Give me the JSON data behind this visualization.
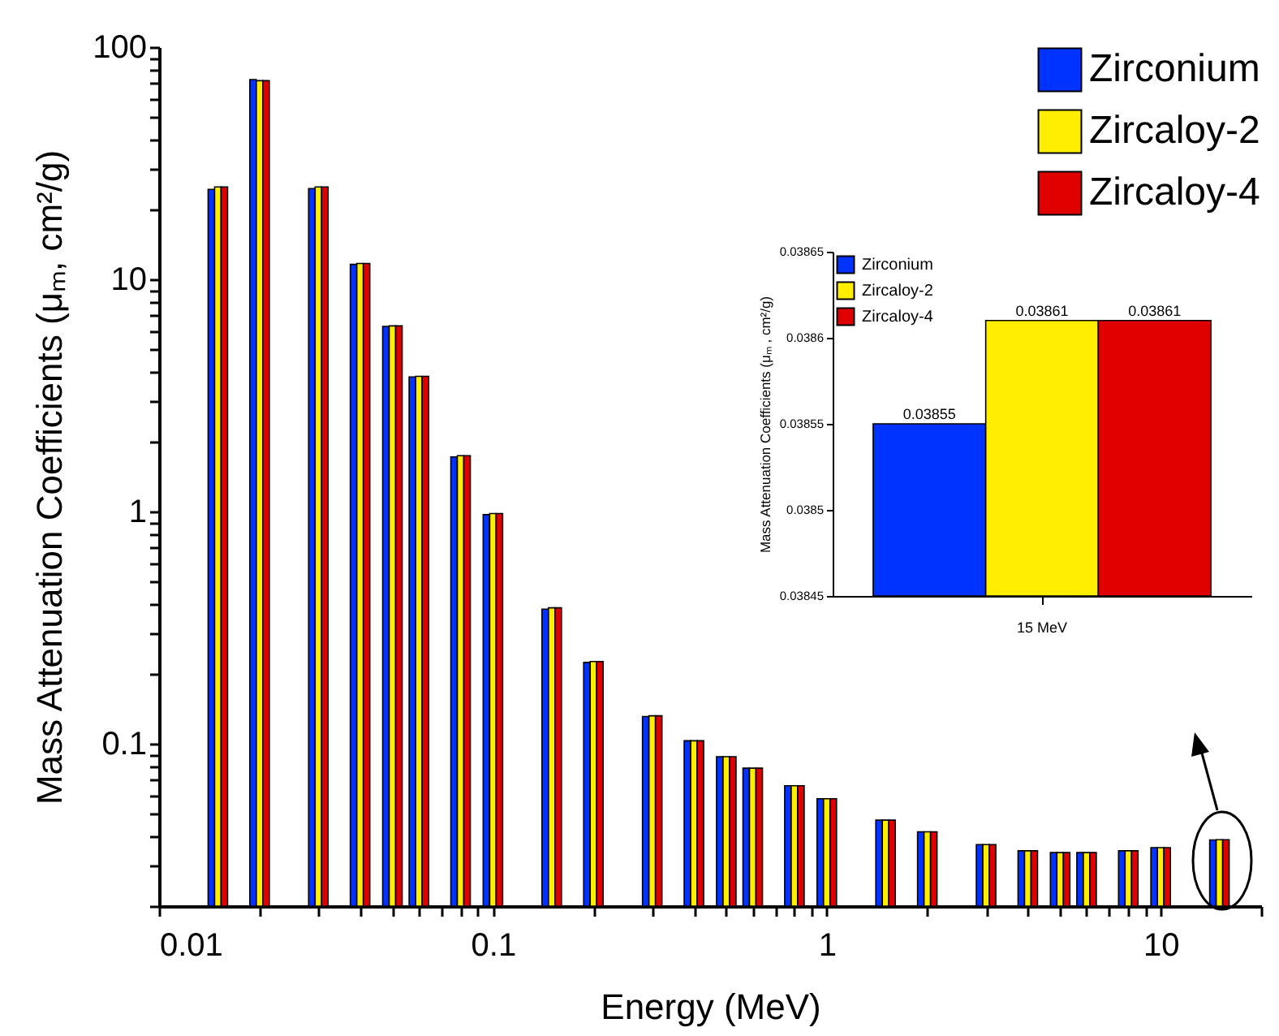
{
  "chart_data": [
    {
      "type": "bar",
      "xlabel": "Energy (MeV)",
      "ylabel": "Mass Attenuation Coefficients (μₘ, cm²/g)",
      "x": [
        0.015,
        0.02,
        0.03,
        0.04,
        0.05,
        0.06,
        0.08,
        0.1,
        0.15,
        0.2,
        0.3,
        0.4,
        0.5,
        0.6,
        0.8,
        1,
        1.5,
        2,
        3,
        4,
        5,
        6,
        8,
        10,
        15
      ],
      "series": [
        {
          "name": "Zirconium",
          "color": "#0033ff",
          "values": [
            24.4,
            72.5,
            24.6,
            11.6,
            6.27,
            3.8,
            1.72,
            0.97,
            0.38,
            0.224,
            0.131,
            0.103,
            0.088,
            0.0785,
            0.066,
            0.058,
            0.0469,
            0.0418,
            0.0368,
            0.0346,
            0.034,
            0.034,
            0.0346,
            0.0357,
            0.03855
          ]
        },
        {
          "name": "Zircaloy-2",
          "color": "#ffee00",
          "values": [
            25.0,
            71.7,
            25.0,
            11.7,
            6.3,
            3.82,
            1.74,
            0.98,
            0.385,
            0.226,
            0.132,
            0.103,
            0.088,
            0.0785,
            0.066,
            0.058,
            0.0469,
            0.0418,
            0.0368,
            0.0346,
            0.034,
            0.034,
            0.0346,
            0.0357,
            0.03861
          ]
        },
        {
          "name": "Zircaloy-4",
          "color": "#e00000",
          "values": [
            25.0,
            71.7,
            25.0,
            11.7,
            6.3,
            3.82,
            1.74,
            0.98,
            0.385,
            0.226,
            0.132,
            0.103,
            0.088,
            0.0785,
            0.066,
            0.058,
            0.0469,
            0.0418,
            0.0368,
            0.0346,
            0.034,
            0.034,
            0.0346,
            0.0357,
            0.03861
          ]
        }
      ],
      "xlim": [
        0.01,
        20
      ],
      "ylim": [
        0.02,
        100
      ],
      "log": "xy",
      "xticks": [
        0.01,
        {
          "value": 0.02,
          "label": null
        },
        {
          "value": 0.03,
          "label": null
        },
        {
          "value": 0.04,
          "label": null
        },
        {
          "value": 0.05,
          "label": null
        },
        {
          "value": 0.06,
          "label": null
        },
        {
          "value": 0.07,
          "label": null
        },
        {
          "value": 0.08,
          "label": null
        },
        {
          "value": 0.09,
          "label": null
        },
        0.1,
        {
          "value": 0.2,
          "label": null
        },
        {
          "value": 0.3,
          "label": null
        },
        {
          "value": 0.4,
          "label": null
        },
        {
          "value": 0.5,
          "label": null
        },
        {
          "value": 0.6,
          "label": null
        },
        {
          "value": 0.7,
          "label": null
        },
        {
          "value": 0.8,
          "label": null
        },
        {
          "value": 0.9,
          "label": null
        },
        1,
        {
          "value": 2,
          "label": null
        },
        {
          "value": 3,
          "label": null
        },
        {
          "value": 4,
          "label": null
        },
        {
          "value": 5,
          "label": null
        },
        {
          "value": 6,
          "label": null
        },
        {
          "value": 7,
          "label": null
        },
        {
          "value": 8,
          "label": null
        },
        {
          "value": 9,
          "label": null
        },
        10,
        {
          "value": 20,
          "label": null
        }
      ],
      "yticks": [
        {
          "value": 0.02,
          "label": null
        },
        {
          "value": 0.03,
          "label": null
        },
        {
          "value": 0.04,
          "label": null
        },
        {
          "value": 0.05,
          "label": null
        },
        {
          "value": 0.06,
          "label": null
        },
        {
          "value": 0.07,
          "label": null
        },
        {
          "value": 0.08,
          "label": null
        },
        {
          "value": 0.09,
          "label": null
        },
        0.1,
        {
          "value": 0.2,
          "label": null
        },
        {
          "value": 0.3,
          "label": null
        },
        {
          "value": 0.4,
          "label": null
        },
        {
          "value": 0.5,
          "label": null
        },
        {
          "value": 0.6,
          "label": null
        },
        {
          "value": 0.7,
          "label": null
        },
        {
          "value": 0.8,
          "label": null
        },
        {
          "value": 0.9,
          "label": null
        },
        1,
        {
          "value": 2,
          "label": null
        },
        {
          "value": 3,
          "label": null
        },
        {
          "value": 4,
          "label": null
        },
        {
          "value": 5,
          "label": null
        },
        {
          "value": 6,
          "label": null
        },
        {
          "value": 7,
          "label": null
        },
        {
          "value": 8,
          "label": null
        },
        {
          "value": 9,
          "label": null
        },
        10,
        {
          "value": 20,
          "label": null
        },
        {
          "value": 30,
          "label": null
        },
        {
          "value": 40,
          "label": null
        },
        {
          "value": 50,
          "label": null
        },
        {
          "value": 60,
          "label": null
        },
        {
          "value": 70,
          "label": null
        },
        {
          "value": 80,
          "label": null
        },
        {
          "value": 90,
          "label": null
        },
        100
      ],
      "grid": false,
      "legend": "top right"
    },
    {
      "type": "bar",
      "ylabel": "Mass Attenuation Coefficients (μₘ , cm²/g)",
      "categories": [
        "15 MeV"
      ],
      "series": [
        {
          "name": "Zirconium",
          "color": "#0033ff",
          "values": [
            0.03855
          ]
        },
        {
          "name": "Zircaloy-2",
          "color": "#ffee00",
          "values": [
            0.03861
          ]
        },
        {
          "name": "Zircaloy-4",
          "color": "#e00000",
          "values": [
            0.03861
          ]
        }
      ],
      "ylim": [
        0.03845,
        0.03865
      ],
      "yticks": [
        0.03845,
        0.0385,
        0.03855,
        0.0386,
        0.03865
      ],
      "data_labels": true,
      "grid": false,
      "legend": "top left"
    }
  ]
}
